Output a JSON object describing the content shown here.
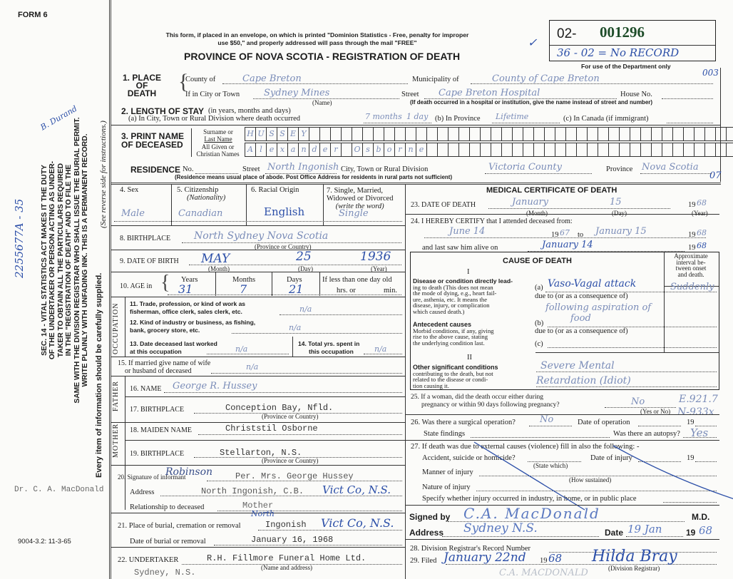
{
  "form_label": "FORM 6",
  "form_code": "9004-3.2: 11-3-65",
  "mail_notice": [
    "This form, if placed in an envelope, on which is printed \"Dominion Statistics - Free, penalty for improper",
    "use $50,\" and properly addressed will pass through the mail \"FREE\""
  ],
  "title": "PROVINCE OF NOVA SCOTIA - REGISTRATION OF DEATH",
  "registration": {
    "prefix": "02-",
    "number": "001296",
    "note": "36 - 02 = No RECORD",
    "dept_label": "For use of the Department only"
  },
  "margin": {
    "act_text": [
      "SEC. 14 - VITAL STATISTICS ACT MAKES IT THE DUTY",
      "OF THE UNDERTAKER OR PERSON ACTING AS UNDER-",
      "TAKER TO OBTAIN ALL THE PARTICULARS REQUIRED",
      "IN THE \"REGISTRATION OF DEATH\" AND TO FILE THE",
      "SAME WITH THE DIVISION REGISTRAR WHO SHALL ISSUE THE BURIAL PERMIT.",
      "WRITE PLAINLY WITH UNFADING INK. THIS IS A PERMANENT RECORD."
    ],
    "reverse_note": "(See reverse side for instructions.)",
    "every_item": "Every item of information should be carefully supplied.",
    "handwritten_code": "2255677A - 35",
    "handwritten_initials": "B. Durand",
    "typed_doctor": "Dr. C. A. MacDonald",
    "code_municipality": "003",
    "code_residence": "07"
  },
  "place_of_death": {
    "label": [
      "1. PLACE",
      "OF",
      "DEATH"
    ],
    "county_label": "County of",
    "county": "Cape Breton",
    "municipality_label": "Municipality of",
    "municipality": "County of Cape Breton",
    "city_label": "If in City or Town",
    "city": "Sydney Mines",
    "name_hint": "(Name)",
    "street_label": "Street",
    "street": "Cape Breton Hospital",
    "house_label": "House No.",
    "hospital_hint": "(If death occurred in a hospital or institution, give the name instead of street and number)"
  },
  "length_of_stay": {
    "label": "2. LENGTH OF STAY",
    "label_hint": "(in years, months and days)",
    "a_label": "(a) In City, Town or Rural Division where death occurred",
    "a_value_1": "7 months",
    "a_value_2": "1 day",
    "b_label": "(b) In Province",
    "b_value": "Lifetime",
    "c_label": "(c) In Canada (if immigrant)"
  },
  "name": {
    "label": [
      "3. PRINT NAME",
      "OF DECEASED"
    ],
    "surname_label": [
      "Surname or",
      "Last Name"
    ],
    "surname": "HUSSEY",
    "given_label": [
      "All Given or",
      "Christian Names"
    ],
    "given": "Alexander Osborne"
  },
  "residence": {
    "label": "RESIDENCE",
    "no_label": "No.",
    "street_label": "Street",
    "street": "North Ingonish",
    "city_label": "City, Town or Rural Division",
    "city": "Victoria County",
    "province_label": "Province",
    "province": "Nova Scotia",
    "note": "(Residence means usual place of abode. Post Office Address for residents in rural parts not sufficient)"
  },
  "personal": {
    "sex_label": "4. Sex",
    "sex": "Male",
    "citizenship_label": "5. Citizenship",
    "citizenship_hint": "(Nationality)",
    "citizenship": "Canadian",
    "racial_label": "6. Racial Origin",
    "racial": "English",
    "marital_label": [
      "7. Single, Married,",
      "Widowed or Divorced"
    ],
    "marital_hint": "(write the word)",
    "marital": "Single",
    "birthplace_label": "8. BIRTHPLACE",
    "birthplace": "North Sydney Nova Scotia",
    "birthplace_hint": "(Province or Country)",
    "dob_label": "9. DATE OF BIRTH",
    "dob_month": "MAY",
    "dob_day": "25",
    "dob_year": "1936",
    "month_hint": "(Month)",
    "day_hint": "(Day)",
    "year_hint": "(Year)",
    "age_label": "10. AGE in",
    "years_label": "Years",
    "years": "31",
    "months_label": "Months",
    "months": "7",
    "days_label": "Days",
    "days": "21",
    "less_than_day": "If less than one day old",
    "hrs_label": "hrs. or",
    "min_label": "min."
  },
  "occupation": {
    "side_label": "OCCUPATION",
    "trade_label": [
      "11. Trade, profession, or kind of work as",
      "fisherman, office clerk, sales clerk, etc."
    ],
    "trade": "n/a",
    "industry_label": [
      "12. Kind of industry or business, as fishing,",
      "bank, grocery store, etc."
    ],
    "industry": "n/a",
    "last_worked_label": [
      "13. Date deceased last worked",
      "at this occupation"
    ],
    "last_worked": "n/a",
    "total_years_label": [
      "14. Total yrs. spent in",
      "this occupation"
    ],
    "total_years": "n/a"
  },
  "family": {
    "spouse_label": [
      "15. If married give name of wife",
      "or husband of deceased"
    ],
    "spouse": "n/a",
    "father_side": "FATHER",
    "father_name_label": "16. NAME",
    "father_name": "George R. Hussey",
    "father_birthplace_label": "17. BIRTHPLACE",
    "father_birthplace": "Conception Bay, Nfld.",
    "province_hint": "(Province or Country)",
    "mother_side": "MOTHER",
    "mother_maiden_label": "18. MAIDEN NAME",
    "mother_maiden": "Christstil Osborne",
    "mother_birthplace_label": "19. BIRTHPLACE",
    "mother_birthplace": "Stellarton, N.S."
  },
  "informant": {
    "signature_label": "20. Signature of informant",
    "signature_hand": "Robinson",
    "signature": "Per. Mrs. George Hussey",
    "address_label": "Address",
    "address": "North Ingonish, C.B.",
    "address_hand": "Vict Co, N.S.",
    "relationship_label": "Relationship to deceased",
    "relationship": "Mother"
  },
  "burial": {
    "place_label": "21. Place of burial, cremation or removal",
    "place_hand_above": "North",
    "place": "Ingonish",
    "place_hand": "Vict Co, N.S.",
    "date_label": "Date of burial or removal",
    "date": "January 16, 1968",
    "undertaker_label": "22. UNDERTAKER",
    "undertaker": "R.H. Fillmore Funeral Home Ltd.",
    "undertaker_hint": "(Name and address)",
    "undertaker_city": "Sydney, N.S."
  },
  "medical": {
    "header": "MEDICAL CERTIFICATE OF DEATH",
    "death_label": "23. DATE OF DEATH",
    "death_month": "January",
    "death_day": "15",
    "death_year_prefix": "19",
    "death_year": "68",
    "certify_label": "24. I HEREBY CERTIFY that I attended deceased from:",
    "from": "June 14",
    "from_year": "67",
    "to_label": "to",
    "to": "January 15",
    "to_year": "68",
    "last_saw_label": "and last saw him alive on",
    "last_saw": "January 14",
    "last_saw_year": "68",
    "cause_header": "CAUSE OF DEATH",
    "part_i": "I",
    "part_ii": "II",
    "interval_label": [
      "Approximate",
      "interval be-",
      "tween onset",
      "and death."
    ],
    "direct_label": [
      "Disease or condition directly lead-",
      "ing to death (This does not mean",
      "the mode of dying, e.g., heart fail-",
      "ure, asthenia, etc. It means the",
      "disease, injury, or complication",
      "which caused death.)"
    ],
    "a_label": "(a)",
    "cause_a": "Vaso-Vagal attack",
    "due_to": "due to (or as a consequence of)",
    "cause_a2": "following aspiration of",
    "cause_a3": "food",
    "interval": "Suddenly",
    "antecedent_label": [
      "Antecedent causes",
      "Morbid conditions, if any, giving",
      "rise to the above cause, stating",
      "the underlying condition last."
    ],
    "b_label": "(b)",
    "c_label": "(c)",
    "other_label": [
      "Other significant conditions",
      "contributing to the death, but not",
      "related to the disease or condi-",
      "tion causing it."
    ],
    "other_1": "Severe Mental",
    "other_2": "Retardation (Idiot)",
    "pregnancy_label": [
      "25. If a woman, did the death occur either during",
      "pregnancy or within 90 days following pregnancy?"
    ],
    "pregnancy": "No",
    "yes_no_hint": "(Yes or No)",
    "code_1": "E.921.7",
    "code_2": "N-933x",
    "operation_label": "26. Was there a surgical operation?",
    "operation": "No",
    "op_date_label": "Date of operation",
    "nineteen": "19",
    "findings_label": "State findings",
    "autopsy_label": "Was there an autopsy?",
    "autopsy": "Yes",
    "external_label": "27. If death was due to external causes (violence) fill in also the following: -",
    "accident_label": "Accident, suicide or homicide?",
    "state_which": "(State which)",
    "injury_date_label": "Date of injury",
    "manner_label": "Manner of injury",
    "how_sustained": "(How sustained)",
    "nature_label": "Nature of injury",
    "specify_label": "Specify whether injury occurred in industry, in home, or in public place",
    "signed_label": "Signed by",
    "signed": "C.A. MacDonald",
    "md": "M.D.",
    "address_label": "Address",
    "address": "Sydney N.S.",
    "date_label": "Date",
    "date": "19 Jan",
    "date_year": "68",
    "record_label": "28. Division Registrar's Record Number",
    "filed_label": "29. Filed",
    "filed": "January 22nd",
    "filed_year": "68",
    "registrar": "Hilda Bray",
    "registrar_hint": "(Division Registrar)",
    "registrar_stamp": "C.A. MACDONALD"
  }
}
